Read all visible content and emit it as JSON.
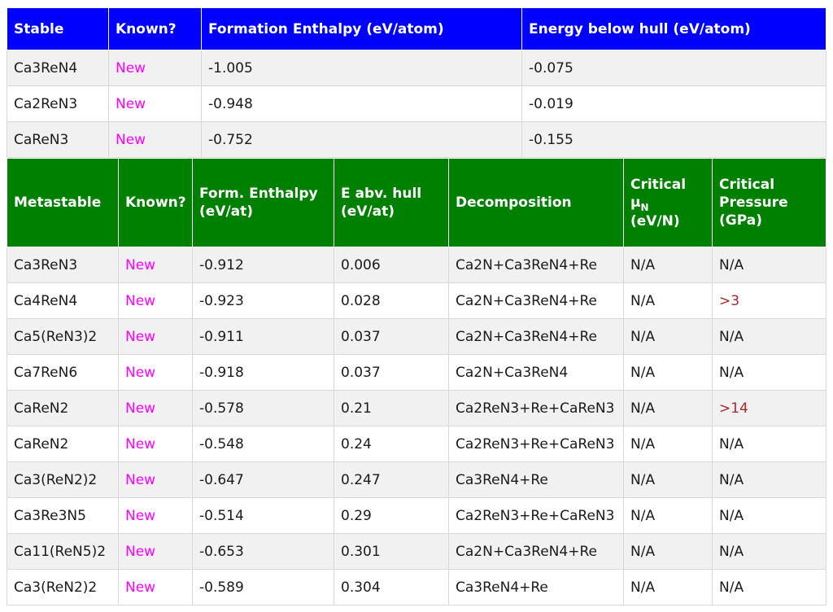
{
  "stable": {
    "headers": {
      "col0": "Stable",
      "col1": "Known?",
      "col2": "Formation Enthalpy (eV/atom)",
      "col3": "Energy below hull (eV/atom)"
    },
    "rows": [
      [
        "Ca3ReN4",
        "New",
        "-1.005",
        "-0.075"
      ],
      [
        "Ca2ReN3",
        "New",
        "-0.948",
        "-0.019"
      ],
      [
        "CaReN3",
        "New",
        "-0.752",
        "-0.155"
      ]
    ]
  },
  "metastable": {
    "headers": {
      "col0": "Metastable",
      "col1": "Known?",
      "col2_line1": "Form. Enthalpy",
      "col2_line2": "(eV/at)",
      "col3_line1": "E abv. hull",
      "col3_line2": "(eV/at)",
      "col4": "Decomposition",
      "col5_line1": "Critical",
      "col5_mu": "μ",
      "col5_sub": "N",
      "col5_line3": "(eV/N)",
      "col6_line1": "Critical",
      "col6_line2": "Pressure",
      "col6_line3": "(GPa)"
    },
    "rows": [
      [
        "Ca3ReN3",
        "New",
        "-0.912",
        "0.006",
        "Ca2N+Ca3ReN4+Re",
        "N/A",
        "N/A"
      ],
      [
        "Ca4ReN4",
        "New",
        "-0.923",
        "0.028",
        "Ca2N+Ca3ReN4+Re",
        "N/A",
        ">3"
      ],
      [
        "Ca5(ReN3)2",
        "New",
        "-0.911",
        "0.037",
        "Ca2N+Ca3ReN4+Re",
        "N/A",
        "N/A"
      ],
      [
        "Ca7ReN6",
        "New",
        "-0.918",
        "0.037",
        "Ca2N+Ca3ReN4",
        "N/A",
        "N/A"
      ],
      [
        "CaReN2",
        "New",
        "-0.578",
        "0.21",
        "Ca2ReN3+Re+CaReN3",
        "N/A",
        ">14"
      ],
      [
        "CaReN2",
        "New",
        "-0.548",
        "0.24",
        "Ca2ReN3+Re+CaReN3",
        "N/A",
        "N/A"
      ],
      [
        "Ca3(ReN2)2",
        "New",
        "-0.647",
        "0.247",
        "Ca3ReN4+Re",
        "N/A",
        "N/A"
      ],
      [
        "Ca3Re3N5",
        "New",
        "-0.514",
        "0.29",
        "Ca2ReN3+Re+CaReN3",
        "N/A",
        "N/A"
      ],
      [
        "Ca11(ReN5)2",
        "New",
        "-0.653",
        "0.301",
        "Ca2N+Ca3ReN4+Re",
        "N/A",
        "N/A"
      ],
      [
        "Ca3(ReN2)2",
        "New",
        "-0.589",
        "0.304",
        "Ca3ReN4+Re",
        "N/A",
        "N/A"
      ]
    ]
  },
  "colors": {
    "stable_header": "#0000ff",
    "metastable_header": "#008000",
    "new_text": "#ff00ff",
    "pressure_highlight": "#a52a2a"
  }
}
